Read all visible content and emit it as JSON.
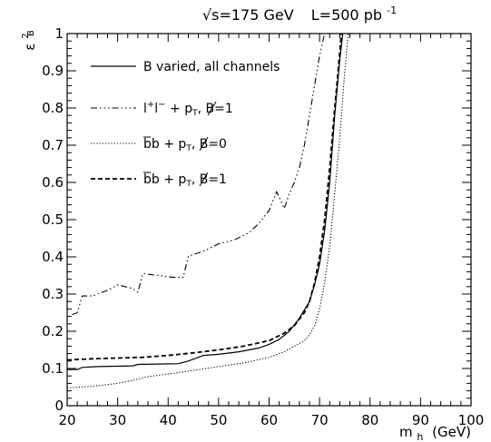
{
  "chart_data": {
    "type": "line",
    "title": "√s=175 GeV   L=500 pb⁻¹",
    "title_parts": {
      "energy": "√s=175 GeV",
      "lumi": "L=500 pb",
      "lumi_exp": "-1"
    },
    "xlabel": "m",
    "xlabel_sub": "h",
    "xlabel_unit": "(GeV)",
    "ylabel": "ε",
    "ylabel_sup": "2",
    "ylabel_sub": "B",
    "xlim": [
      20,
      100
    ],
    "ylim": [
      0,
      1
    ],
    "x_ticks": [
      20,
      30,
      40,
      50,
      60,
      70,
      80,
      90,
      100
    ],
    "y_ticks": [
      0,
      0.1,
      0.2,
      0.3,
      0.4,
      0.5,
      0.6,
      0.7,
      0.8,
      0.9,
      1
    ],
    "grid": false,
    "legend_position": "top-left",
    "series": [
      {
        "name": "B varied, all channels",
        "style": "solid",
        "points": [
          [
            20,
            0.097
          ],
          [
            22,
            0.097
          ],
          [
            23,
            0.103
          ],
          [
            26,
            0.105
          ],
          [
            30,
            0.106
          ],
          [
            33,
            0.107
          ],
          [
            34,
            0.111
          ],
          [
            38,
            0.112
          ],
          [
            42,
            0.113
          ],
          [
            44,
            0.12
          ],
          [
            47,
            0.135
          ],
          [
            50,
            0.138
          ],
          [
            54,
            0.145
          ],
          [
            58,
            0.155
          ],
          [
            60,
            0.165
          ],
          [
            62,
            0.178
          ],
          [
            64,
            0.2
          ],
          [
            66,
            0.235
          ],
          [
            68,
            0.28
          ],
          [
            69,
            0.325
          ],
          [
            70,
            0.38
          ],
          [
            71,
            0.47
          ],
          [
            72,
            0.6
          ],
          [
            73,
            0.78
          ],
          [
            74,
            0.93
          ],
          [
            74.6,
            1.0
          ]
        ]
      },
      {
        "name": "l⁺l⁻ + p̸T,   B=1",
        "style": "dash-dot",
        "label_parts": {
          "l": "l",
          "l_sup1": "+",
          "l2": "l",
          "l_sup2": "−",
          "plus": " + ",
          "pt": "p",
          "pt_sub": "T",
          "tail": ",   B=1"
        },
        "points": [
          [
            21,
            0.245
          ],
          [
            22,
            0.25
          ],
          [
            23,
            0.295
          ],
          [
            25,
            0.295
          ],
          [
            28,
            0.31
          ],
          [
            30,
            0.325
          ],
          [
            33,
            0.315
          ],
          [
            34,
            0.305
          ],
          [
            35,
            0.355
          ],
          [
            38,
            0.35
          ],
          [
            41,
            0.345
          ],
          [
            43,
            0.345
          ],
          [
            44,
            0.402
          ],
          [
            47,
            0.415
          ],
          [
            50,
            0.435
          ],
          [
            53,
            0.445
          ],
          [
            56,
            0.465
          ],
          [
            58,
            0.49
          ],
          [
            60,
            0.525
          ],
          [
            61.5,
            0.575
          ],
          [
            62.5,
            0.545
          ],
          [
            63,
            0.53
          ],
          [
            64,
            0.57
          ],
          [
            65,
            0.6
          ],
          [
            66,
            0.64
          ],
          [
            67,
            0.7
          ],
          [
            68,
            0.78
          ],
          [
            69,
            0.86
          ],
          [
            70,
            0.94
          ],
          [
            71,
            1.0
          ]
        ]
      },
      {
        "name": "b̄b + p̸T,   B=0",
        "style": "dotted",
        "label_parts": {
          "bbar": "b",
          "b": "b",
          "plus": " + ",
          "pt": "p",
          "pt_sub": "T",
          "tail": ",   B=0"
        },
        "points": [
          [
            20,
            0.048
          ],
          [
            25,
            0.052
          ],
          [
            30,
            0.06
          ],
          [
            33,
            0.068
          ],
          [
            36,
            0.078
          ],
          [
            40,
            0.085
          ],
          [
            45,
            0.095
          ],
          [
            50,
            0.105
          ],
          [
            55,
            0.115
          ],
          [
            60,
            0.13
          ],
          [
            63,
            0.145
          ],
          [
            65,
            0.16
          ],
          [
            67,
            0.175
          ],
          [
            68,
            0.19
          ],
          [
            69,
            0.215
          ],
          [
            70,
            0.26
          ],
          [
            71,
            0.33
          ],
          [
            72,
            0.43
          ],
          [
            73,
            0.57
          ],
          [
            74,
            0.72
          ],
          [
            75,
            0.9
          ],
          [
            75.7,
            1.0
          ]
        ]
      },
      {
        "name": "b̄b + p̸T,   B=1",
        "style": "dashed",
        "label_parts": {
          "bbar": "b",
          "b": "b",
          "plus": " + ",
          "pt": "p",
          "pt_sub": "T",
          "tail": ",   B=1"
        },
        "points": [
          [
            20,
            0.123
          ],
          [
            25,
            0.126
          ],
          [
            30,
            0.128
          ],
          [
            35,
            0.13
          ],
          [
            40,
            0.135
          ],
          [
            45,
            0.142
          ],
          [
            50,
            0.15
          ],
          [
            55,
            0.16
          ],
          [
            60,
            0.175
          ],
          [
            63,
            0.195
          ],
          [
            65,
            0.215
          ],
          [
            67,
            0.25
          ],
          [
            68,
            0.28
          ],
          [
            69,
            0.33
          ],
          [
            70,
            0.4
          ],
          [
            71,
            0.5
          ],
          [
            72,
            0.64
          ],
          [
            73,
            0.8
          ],
          [
            74,
            0.95
          ],
          [
            74.3,
            1.0
          ]
        ]
      }
    ]
  }
}
